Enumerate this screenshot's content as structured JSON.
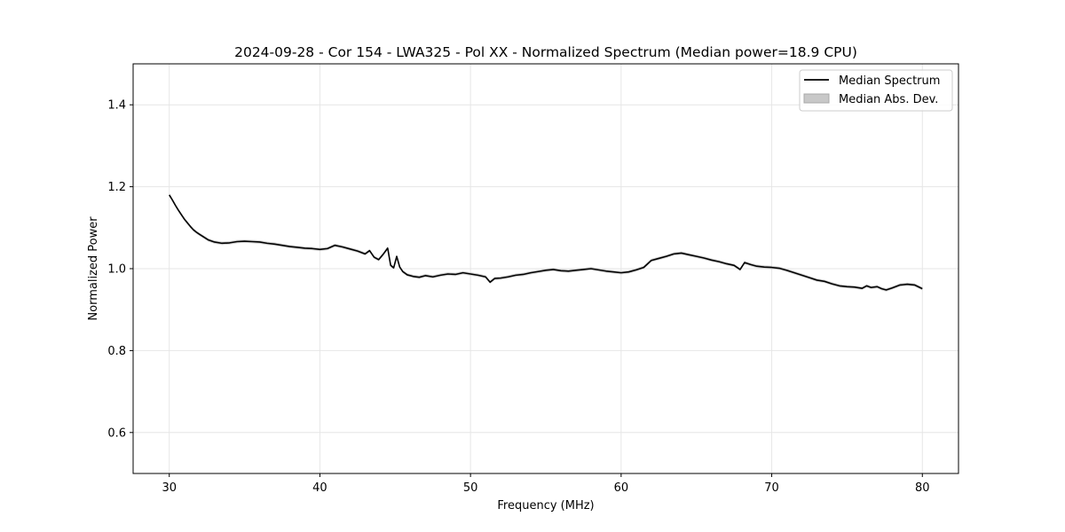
{
  "chart_data": {
    "type": "line",
    "title": "2024-09-28 - Cor 154 - LWA325 - Pol XX - Normalized Spectrum (Median power=18.9 CPU)",
    "xlabel": "Frequency (MHz)",
    "ylabel": "Normalized Power",
    "xlim": [
      27.6,
      82.4
    ],
    "ylim": [
      0.5,
      1.5
    ],
    "xticks": [
      30,
      40,
      50,
      60,
      70,
      80
    ],
    "xtick_labels": [
      "30",
      "40",
      "50",
      "60",
      "70",
      "80"
    ],
    "yticks": [
      0.6,
      0.8,
      1.0,
      1.2,
      1.4
    ],
    "ytick_labels": [
      "0.6",
      "0.8",
      "1.0",
      "1.2",
      "1.4"
    ],
    "grid": true,
    "legend_position": "top-right",
    "legend": [
      "Median Spectrum",
      "Median Abs. Dev."
    ],
    "colors": {
      "line": "#000000",
      "band": "#c8c8c8",
      "grid": "#e6e6e6"
    },
    "series": [
      {
        "name": "Median Spectrum",
        "x": [
          30.0,
          30.2,
          30.4,
          30.6,
          30.8,
          31.0,
          31.2,
          31.4,
          31.6,
          31.8,
          32.0,
          32.3,
          32.6,
          33.0,
          33.5,
          34.0,
          34.5,
          35.0,
          35.5,
          36.0,
          36.5,
          37.0,
          37.5,
          38.0,
          38.5,
          39.0,
          39.5,
          40.0,
          40.5,
          41.0,
          41.5,
          42.0,
          42.5,
          43.0,
          43.3,
          43.6,
          43.9,
          44.2,
          44.5,
          44.7,
          44.9,
          45.1,
          45.3,
          45.5,
          45.8,
          46.2,
          46.6,
          47.0,
          47.5,
          48.0,
          48.5,
          49.0,
          49.5,
          50.0,
          50.5,
          51.0,
          51.3,
          51.6,
          52.0,
          52.5,
          53.0,
          53.5,
          54.0,
          54.5,
          55.0,
          55.5,
          56.0,
          56.5,
          57.0,
          57.5,
          58.0,
          58.5,
          59.0,
          59.5,
          60.0,
          60.5,
          61.0,
          61.5,
          62.0,
          62.5,
          63.0,
          63.5,
          64.0,
          64.5,
          65.0,
          65.5,
          66.0,
          66.5,
          67.0,
          67.5,
          67.9,
          68.2,
          68.6,
          69.0,
          69.5,
          70.0,
          70.5,
          71.0,
          71.5,
          72.0,
          72.5,
          73.0,
          73.5,
          74.0,
          74.5,
          75.0,
          75.5,
          76.0,
          76.3,
          76.6,
          77.0,
          77.3,
          77.6,
          78.0,
          78.5,
          79.0,
          79.5,
          80.0
        ],
        "values": [
          1.18,
          1.168,
          1.155,
          1.143,
          1.132,
          1.121,
          1.112,
          1.103,
          1.095,
          1.089,
          1.084,
          1.077,
          1.07,
          1.065,
          1.062,
          1.063,
          1.066,
          1.067,
          1.066,
          1.065,
          1.062,
          1.06,
          1.057,
          1.054,
          1.052,
          1.05,
          1.049,
          1.047,
          1.049,
          1.057,
          1.053,
          1.048,
          1.043,
          1.036,
          1.044,
          1.028,
          1.022,
          1.035,
          1.05,
          1.008,
          1.002,
          1.03,
          1.004,
          0.993,
          0.985,
          0.981,
          0.979,
          0.983,
          0.98,
          0.984,
          0.987,
          0.986,
          0.99,
          0.987,
          0.984,
          0.98,
          0.967,
          0.976,
          0.977,
          0.98,
          0.984,
          0.986,
          0.99,
          0.993,
          0.996,
          0.998,
          0.995,
          0.994,
          0.996,
          0.998,
          1.0,
          0.997,
          0.994,
          0.992,
          0.99,
          0.992,
          0.997,
          1.003,
          1.02,
          1.025,
          1.03,
          1.036,
          1.038,
          1.034,
          1.03,
          1.026,
          1.021,
          1.017,
          1.012,
          1.008,
          0.998,
          1.015,
          1.01,
          1.006,
          1.004,
          1.003,
          1.001,
          0.996,
          0.99,
          0.984,
          0.978,
          0.972,
          0.969,
          0.963,
          0.958,
          0.956,
          0.955,
          0.952,
          0.958,
          0.954,
          0.956,
          0.951,
          0.948,
          0.953,
          0.96,
          0.962,
          0.96,
          0.951
        ],
        "mad": [
          0.004,
          0.004,
          0.004,
          0.004,
          0.004,
          0.004,
          0.004,
          0.004,
          0.004,
          0.004,
          0.004,
          0.004,
          0.004,
          0.004,
          0.004,
          0.004,
          0.004,
          0.004,
          0.004,
          0.004,
          0.004,
          0.004,
          0.004,
          0.004,
          0.004,
          0.004,
          0.004,
          0.004,
          0.004,
          0.004,
          0.004,
          0.004,
          0.004,
          0.004,
          0.004,
          0.004,
          0.004,
          0.004,
          0.004,
          0.004,
          0.004,
          0.004,
          0.004,
          0.004,
          0.004,
          0.004,
          0.004,
          0.004,
          0.004,
          0.004,
          0.004,
          0.004,
          0.004,
          0.004,
          0.004,
          0.004,
          0.004,
          0.004,
          0.004,
          0.004,
          0.004,
          0.004,
          0.004,
          0.004,
          0.004,
          0.004,
          0.004,
          0.004,
          0.004,
          0.004,
          0.004,
          0.004,
          0.004,
          0.004,
          0.004,
          0.004,
          0.004,
          0.004,
          0.004,
          0.004,
          0.004,
          0.004,
          0.004,
          0.004,
          0.004,
          0.004,
          0.004,
          0.004,
          0.004,
          0.004,
          0.004,
          0.004,
          0.004,
          0.004,
          0.004,
          0.004,
          0.004,
          0.004,
          0.004,
          0.004,
          0.004,
          0.004,
          0.004,
          0.004,
          0.004,
          0.004,
          0.004,
          0.004,
          0.004,
          0.004,
          0.004,
          0.004,
          0.004,
          0.004,
          0.004,
          0.004,
          0.004,
          0.004
        ]
      }
    ]
  }
}
